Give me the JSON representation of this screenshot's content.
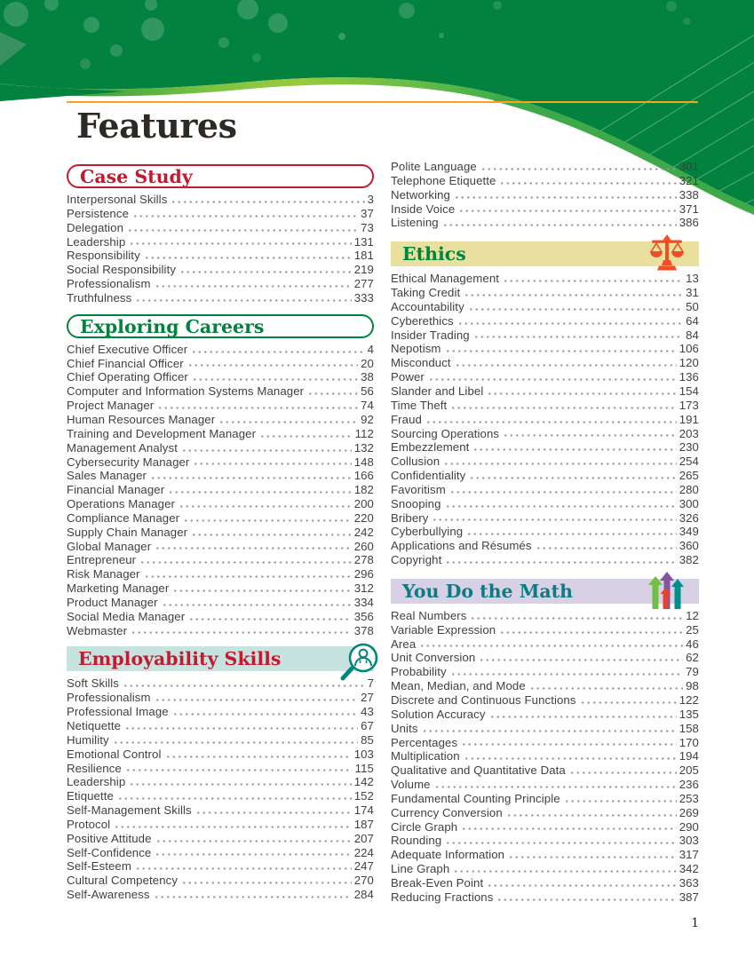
{
  "page": {
    "title": "Features",
    "footer_page_number": "1"
  },
  "theme": {
    "header_green": "#03813E",
    "curve_light_green": "#8DC63F",
    "rule_orange": "#F9A51B",
    "red": "#C21B30",
    "green": "#00843D",
    "teal_icon": "#00877C",
    "teal_text": "#0B7C82",
    "teal_band": "#C7E3DF",
    "tan_band": "#E9DF9E",
    "lavender_band": "#D8D0E5",
    "scales_orange": "#F04E23",
    "entry_text": "#414042"
  },
  "columns": {
    "left": [
      {
        "name": "case-study",
        "title": "Case Study",
        "style": "pill pill-red",
        "entries": [
          {
            "label": "Interpersonal Skills",
            "page": "3"
          },
          {
            "label": "Persistence",
            "page": "37"
          },
          {
            "label": "Delegation",
            "page": "73"
          },
          {
            "label": "Leadership",
            "page": "131"
          },
          {
            "label": "Responsibility",
            "page": "181"
          },
          {
            "label": "Social Responsibility",
            "page": "219"
          },
          {
            "label": "Professionalism",
            "page": "277"
          },
          {
            "label": "Truthfulness",
            "page": "333"
          }
        ]
      },
      {
        "name": "exploring-careers",
        "title": "Exploring Careers",
        "style": "pill pill-green",
        "entries": [
          {
            "label": "Chief Executive Officer",
            "page": "4"
          },
          {
            "label": "Chief Financial Officer",
            "page": "20"
          },
          {
            "label": "Chief Operating Officer",
            "page": "38"
          },
          {
            "label": "Computer and Information Systems Manager",
            "page": "56"
          },
          {
            "label": "Project Manager",
            "page": "74"
          },
          {
            "label": "Human Resources Manager",
            "page": "92"
          },
          {
            "label": "Training and Development Manager",
            "page": "112"
          },
          {
            "label": "Management Analyst",
            "page": "132"
          },
          {
            "label": "Cybersecurity Manager",
            "page": "148"
          },
          {
            "label": "Sales Manager",
            "page": "166"
          },
          {
            "label": "Financial Manager",
            "page": "182"
          },
          {
            "label": "Operations Manager",
            "page": "200"
          },
          {
            "label": "Compliance Manager",
            "page": "220"
          },
          {
            "label": "Supply Chain Manager",
            "page": "242"
          },
          {
            "label": "Global Manager",
            "page": "260"
          },
          {
            "label": "Entrepreneur",
            "page": "278"
          },
          {
            "label": "Risk Manager",
            "page": "296"
          },
          {
            "label": "Marketing Manager",
            "page": "312"
          },
          {
            "label": "Product Manager",
            "page": "334"
          },
          {
            "label": "Social Media Manager",
            "page": "356"
          },
          {
            "label": "Webmaster",
            "page": "378"
          }
        ]
      },
      {
        "name": "employability-skills",
        "title": "Employability Skills",
        "style": "band band-teal",
        "icon": "magnifier-person-icon",
        "entries": [
          {
            "label": "Soft Skills",
            "page": "7"
          },
          {
            "label": "Professionalism",
            "page": "27"
          },
          {
            "label": "Professional Image",
            "page": "43"
          },
          {
            "label": "Netiquette",
            "page": "67"
          },
          {
            "label": "Humility",
            "page": "85"
          },
          {
            "label": "Emotional Control",
            "page": "103"
          },
          {
            "label": "Resilience",
            "page": "115"
          },
          {
            "label": "Leadership",
            "page": "142"
          },
          {
            "label": "Etiquette",
            "page": "152"
          },
          {
            "label": "Self-Management Skills",
            "page": "174"
          },
          {
            "label": "Protocol",
            "page": "187"
          },
          {
            "label": "Positive Attitude",
            "page": "207"
          },
          {
            "label": "Self-Confidence",
            "page": "224"
          },
          {
            "label": "Self-Esteem",
            "page": "247"
          },
          {
            "label": "Cultural Competency",
            "page": "270"
          },
          {
            "label": "Self-Awareness",
            "page": "284"
          }
        ]
      }
    ],
    "right": [
      {
        "name": "employability-skills-continued",
        "entries": [
          {
            "label": "Polite Language",
            "page": "301"
          },
          {
            "label": "Telephone Etiquette",
            "page": "321"
          },
          {
            "label": "Networking",
            "page": "338"
          },
          {
            "label": "Inside Voice",
            "page": "371"
          },
          {
            "label": "Listening",
            "page": "386"
          }
        ]
      },
      {
        "name": "ethics",
        "title": "Ethics",
        "style": "band band-tan",
        "icon": "scales-icon",
        "entries": [
          {
            "label": "Ethical Management",
            "page": "13"
          },
          {
            "label": "Taking Credit",
            "page": "31"
          },
          {
            "label": "Accountability",
            "page": "50"
          },
          {
            "label": "Cyberethics",
            "page": "64"
          },
          {
            "label": "Insider Trading",
            "page": "84"
          },
          {
            "label": "Nepotism",
            "page": "106"
          },
          {
            "label": "Misconduct",
            "page": "120"
          },
          {
            "label": "Power",
            "page": "136"
          },
          {
            "label": "Slander and Libel",
            "page": "154"
          },
          {
            "label": "Time Theft",
            "page": "173"
          },
          {
            "label": "Fraud",
            "page": "191"
          },
          {
            "label": "Sourcing Operations",
            "page": "203"
          },
          {
            "label": "Embezzlement",
            "page": "230"
          },
          {
            "label": "Collusion",
            "page": "254"
          },
          {
            "label": "Confidentiality",
            "page": "265"
          },
          {
            "label": "Favoritism",
            "page": "280"
          },
          {
            "label": "Snooping",
            "page": "300"
          },
          {
            "label": "Bribery",
            "page": "326"
          },
          {
            "label": "Cyberbullying",
            "page": "349"
          },
          {
            "label": "Applications and Résumés",
            "page": "360"
          },
          {
            "label": "Copyright",
            "page": "382"
          }
        ]
      },
      {
        "name": "you-do-the-math",
        "title": "You Do the Math",
        "style": "band band-lavender",
        "icon": "arrows-growth-icon",
        "entries": [
          {
            "label": "Real Numbers",
            "page": "12"
          },
          {
            "label": "Variable Expression",
            "page": "25"
          },
          {
            "label": "Area",
            "page": "46"
          },
          {
            "label": "Unit Conversion",
            "page": "62"
          },
          {
            "label": "Probability",
            "page": "79"
          },
          {
            "label": "Mean, Median, and Mode",
            "page": "98"
          },
          {
            "label": "Discrete and Continuous Functions",
            "page": "122"
          },
          {
            "label": "Solution Accuracy",
            "page": "135"
          },
          {
            "label": "Units",
            "page": "158"
          },
          {
            "label": "Percentages",
            "page": "170"
          },
          {
            "label": "Multiplication",
            "page": "194"
          },
          {
            "label": "Qualitative and Quantitative Data",
            "page": "205"
          },
          {
            "label": "Volume",
            "page": "236"
          },
          {
            "label": "Fundamental Counting Principle",
            "page": "253"
          },
          {
            "label": "Currency Conversion",
            "page": "269"
          },
          {
            "label": "Circle Graph",
            "page": "290"
          },
          {
            "label": "Rounding",
            "page": "303"
          },
          {
            "label": "Adequate Information",
            "page": "317"
          },
          {
            "label": "Line Graph",
            "page": "342"
          },
          {
            "label": "Break-Even Point",
            "page": "363"
          },
          {
            "label": "Reducing Fractions",
            "page": "387"
          }
        ]
      }
    ]
  }
}
